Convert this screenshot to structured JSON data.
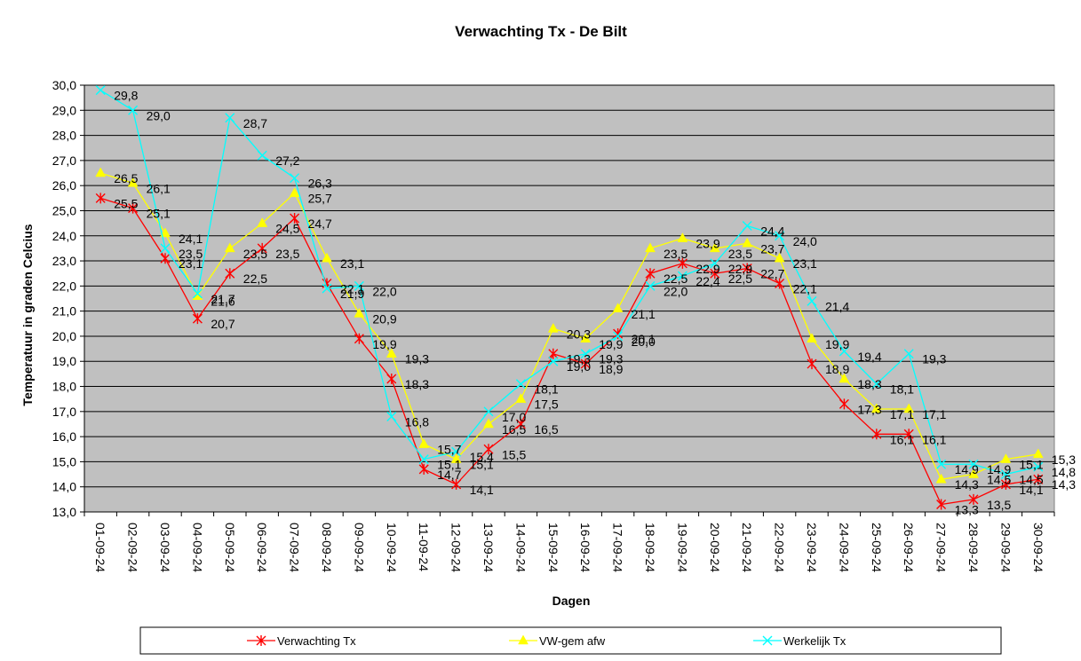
{
  "chart_data": {
    "type": "line",
    "title": "Verwachting Tx - De Bilt",
    "xlabel": "Dagen",
    "ylabel": "Temperatuur in graden Celcius",
    "ylim": [
      13.0,
      30.0
    ],
    "ytick_step": 1.0,
    "grid": true,
    "legend_position": "bottom",
    "plot_background": "#c0c0c0",
    "categories": [
      "01-09-24",
      "02-09-24",
      "03-09-24",
      "04-09-24",
      "05-09-24",
      "06-09-24",
      "07-09-24",
      "08-09-24",
      "09-09-24",
      "10-09-24",
      "11-09-24",
      "12-09-24",
      "13-09-24",
      "14-09-24",
      "15-09-24",
      "16-09-24",
      "17-09-24",
      "18-09-24",
      "19-09-24",
      "20-09-24",
      "21-09-24",
      "22-09-24",
      "23-09-24",
      "24-09-24",
      "25-09-24",
      "26-09-24",
      "27-09-24",
      "28-09-24",
      "29-09-24",
      "30-09-24"
    ],
    "series": [
      {
        "name": "Verwachting Tx",
        "color": "#ff0000",
        "marker": "star",
        "values": [
          25.5,
          25.1,
          23.1,
          20.7,
          22.5,
          23.5,
          24.7,
          22.1,
          19.9,
          18.3,
          14.7,
          14.1,
          15.5,
          16.5,
          19.3,
          18.9,
          20.1,
          22.5,
          22.9,
          22.5,
          22.7,
          22.1,
          18.9,
          17.3,
          16.1,
          16.1,
          13.3,
          13.5,
          14.1,
          14.3
        ]
      },
      {
        "name": "VW-gem afw",
        "color": "#ffff00",
        "marker": "triangle",
        "values": [
          26.5,
          26.1,
          24.1,
          21.6,
          23.5,
          24.5,
          25.7,
          23.1,
          20.9,
          19.3,
          15.7,
          15.1,
          16.5,
          17.5,
          20.3,
          19.9,
          21.1,
          23.5,
          23.9,
          23.5,
          23.7,
          23.1,
          19.9,
          18.3,
          17.1,
          17.1,
          14.3,
          14.5,
          15.1,
          15.3
        ]
      },
      {
        "name": "Werkelijk Tx",
        "color": "#00ffff",
        "marker": "x",
        "values": [
          29.8,
          29.0,
          23.5,
          21.7,
          28.7,
          27.2,
          26.3,
          21.9,
          22.0,
          16.8,
          15.1,
          15.4,
          17.0,
          18.1,
          19.0,
          19.3,
          20.0,
          22.0,
          22.4,
          22.9,
          24.4,
          24.0,
          21.4,
          19.4,
          18.1,
          19.3,
          14.9,
          14.9,
          14.5,
          14.8
        ]
      }
    ]
  }
}
